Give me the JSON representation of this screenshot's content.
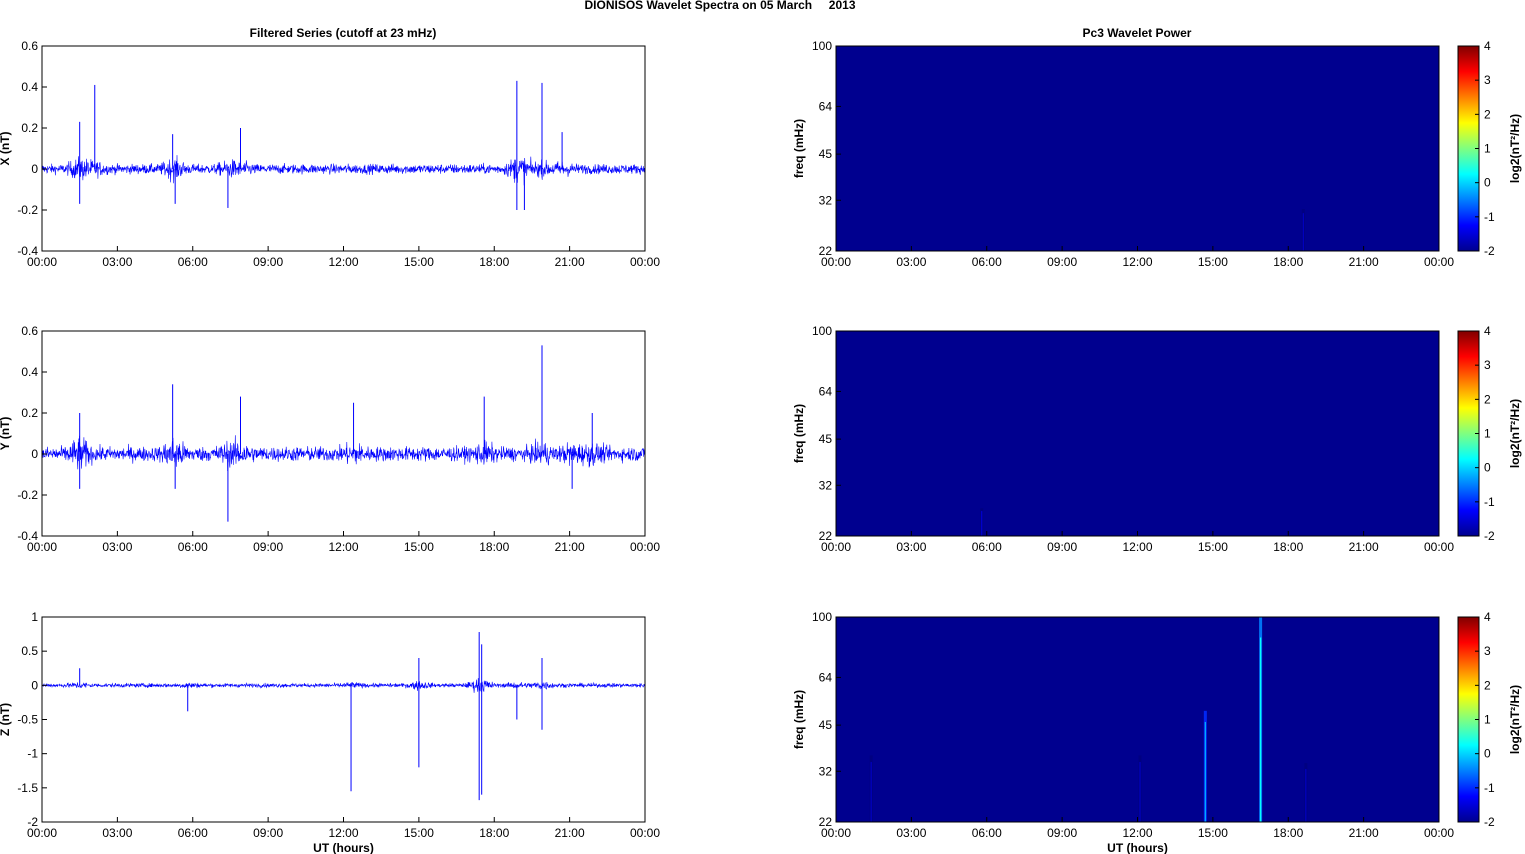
{
  "figure": {
    "title": "DIONISOS Wavelet Spectra on 05 March     2013",
    "left_title": "Filtered Series (cutoff at 23 mHz)",
    "right_title": "Pc3 Wavelet Power"
  },
  "colors": {
    "trace": "#0000ff",
    "axes": "#000000",
    "background": "#00008f"
  },
  "chart_data": [
    {
      "type": "line",
      "panel": "X",
      "title": "Filtered Series (cutoff at 23 mHz)",
      "xlabel": "",
      "ylabel": "X (nT)",
      "x_ticks": [
        "00:00",
        "03:00",
        "06:00",
        "09:00",
        "12:00",
        "15:00",
        "18:00",
        "21:00",
        "00:00"
      ],
      "xlim_hours": [
        0,
        24
      ],
      "ylim": [
        -0.4,
        0.6
      ],
      "y_ticks": [
        "0.6",
        "0.4",
        "0.2",
        "0",
        "-0.2",
        "-0.4"
      ],
      "y_tick_values": [
        0.6,
        0.4,
        0.2,
        0,
        -0.2,
        -0.4
      ],
      "noise_amplitude": 0.04,
      "bursts": [
        {
          "hour": 1.5,
          "y": 0.23
        },
        {
          "hour": 2.1,
          "y": 0.41
        },
        {
          "hour": 5.2,
          "y": 0.17
        },
        {
          "hour": 7.9,
          "y": 0.2
        },
        {
          "hour": 18.9,
          "y": 0.43
        },
        {
          "hour": 19.9,
          "y": 0.42
        },
        {
          "hour": 20.7,
          "y": 0.18
        },
        {
          "hour": 1.5,
          "y": -0.17
        },
        {
          "hour": 7.4,
          "y": -0.19
        },
        {
          "hour": 18.9,
          "y": -0.2
        },
        {
          "hour": 19.2,
          "y": -0.2
        },
        {
          "hour": 5.3,
          "y": -0.17
        }
      ]
    },
    {
      "type": "line",
      "panel": "Y",
      "xlabel": "",
      "ylabel": "Y (nT)",
      "x_ticks": [
        "00:00",
        "03:00",
        "06:00",
        "09:00",
        "12:00",
        "15:00",
        "18:00",
        "21:00",
        "00:00"
      ],
      "xlim_hours": [
        0,
        24
      ],
      "ylim": [
        -0.4,
        0.6
      ],
      "y_ticks": [
        "0.6",
        "0.4",
        "0.2",
        "0",
        "-0.2",
        "-0.4"
      ],
      "y_tick_values": [
        0.6,
        0.4,
        0.2,
        0,
        -0.2,
        -0.4
      ],
      "noise_amplitude": 0.06,
      "bursts": [
        {
          "hour": 5.2,
          "y": 0.34
        },
        {
          "hour": 7.9,
          "y": 0.28
        },
        {
          "hour": 19.9,
          "y": 0.53
        },
        {
          "hour": 17.6,
          "y": 0.28
        },
        {
          "hour": 12.4,
          "y": 0.25
        },
        {
          "hour": 1.5,
          "y": 0.2
        },
        {
          "hour": 21.9,
          "y": 0.2
        },
        {
          "hour": 7.4,
          "y": -0.33
        },
        {
          "hour": 5.3,
          "y": -0.17
        },
        {
          "hour": 1.5,
          "y": -0.17
        },
        {
          "hour": 21.1,
          "y": -0.17
        }
      ]
    },
    {
      "type": "line",
      "panel": "Z",
      "xlabel": "UT (hours)",
      "ylabel": "Z (nT)",
      "x_ticks": [
        "00:00",
        "03:00",
        "06:00",
        "09:00",
        "12:00",
        "15:00",
        "18:00",
        "21:00",
        "00:00"
      ],
      "xlim_hours": [
        0,
        24
      ],
      "ylim": [
        -2,
        1
      ],
      "y_ticks": [
        "1",
        "0.5",
        "0",
        "-0.5",
        "-1",
        "-1.5",
        "-2"
      ],
      "y_tick_values": [
        1,
        0.5,
        0,
        -0.5,
        -1,
        -1.5,
        -2
      ],
      "noise_amplitude": 0.05,
      "bursts": [
        {
          "hour": 17.4,
          "y": 0.78
        },
        {
          "hour": 17.5,
          "y": 0.6
        },
        {
          "hour": 15.0,
          "y": 0.4
        },
        {
          "hour": 19.9,
          "y": 0.4
        },
        {
          "hour": 1.5,
          "y": 0.25
        },
        {
          "hour": 12.3,
          "y": -1.55
        },
        {
          "hour": 15.0,
          "y": -1.2
        },
        {
          "hour": 17.4,
          "y": -1.68
        },
        {
          "hour": 17.5,
          "y": -1.6
        },
        {
          "hour": 18.9,
          "y": -0.5
        },
        {
          "hour": 19.9,
          "y": -0.65
        },
        {
          "hour": 5.8,
          "y": -0.38
        }
      ]
    },
    {
      "type": "heatmap",
      "panel": "X",
      "title": "Pc3 Wavelet Power",
      "xlabel": "",
      "ylabel": "freq (mHz)",
      "x_ticks": [
        "00:00",
        "03:00",
        "06:00",
        "09:00",
        "12:00",
        "15:00",
        "18:00",
        "21:00",
        "00:00"
      ],
      "y_ticks": [
        "100",
        "64",
        "45",
        "32",
        "22"
      ],
      "y_tick_values": [
        100,
        64,
        45,
        32,
        22
      ],
      "freq_scale": "log",
      "ylim": [
        22,
        100
      ],
      "colorbar_label": "log2(nT²/Hz)",
      "colorbar_ticks": [
        "4",
        "3",
        "2",
        "1",
        "0",
        "-1",
        "-2"
      ],
      "clim": [
        -2,
        4
      ],
      "features": [
        {
          "hour": 18.6,
          "freq_top": 30,
          "level": -1.6
        }
      ]
    },
    {
      "type": "heatmap",
      "panel": "Y",
      "xlabel": "",
      "ylabel": "freq (mHz)",
      "x_ticks": [
        "00:00",
        "03:00",
        "06:00",
        "09:00",
        "12:00",
        "15:00",
        "18:00",
        "21:00",
        "00:00"
      ],
      "y_ticks": [
        "100",
        "64",
        "45",
        "32",
        "22"
      ],
      "y_tick_values": [
        100,
        64,
        45,
        32,
        22
      ],
      "freq_scale": "log",
      "ylim": [
        22,
        100
      ],
      "colorbar_label": "log2(nT²/Hz)",
      "colorbar_ticks": [
        "4",
        "3",
        "2",
        "1",
        "0",
        "-1",
        "-2"
      ],
      "clim": [
        -2,
        4
      ],
      "features": [
        {
          "hour": 5.8,
          "freq_top": 27,
          "level": -1.5
        }
      ]
    },
    {
      "type": "heatmap",
      "panel": "Z",
      "xlabel": "UT (hours)",
      "ylabel": "freq (mHz)",
      "x_ticks": [
        "00:00",
        "03:00",
        "06:00",
        "09:00",
        "12:00",
        "15:00",
        "18:00",
        "21:00",
        "00:00"
      ],
      "y_ticks": [
        "100",
        "64",
        "45",
        "32",
        "22"
      ],
      "y_tick_values": [
        100,
        64,
        45,
        32,
        22
      ],
      "freq_scale": "log",
      "ylim": [
        22,
        100
      ],
      "colorbar_label": "log2(nT²/Hz)",
      "colorbar_ticks": [
        "4",
        "3",
        "2",
        "1",
        "0",
        "-1",
        "-2"
      ],
      "clim": [
        -2,
        4
      ],
      "features": [
        {
          "hour": 1.4,
          "freq_top": 36,
          "level": -1.6
        },
        {
          "hour": 12.1,
          "freq_top": 36,
          "level": -1.6
        },
        {
          "hour": 14.7,
          "freq_top": 50,
          "level": -0.2
        },
        {
          "hour": 16.9,
          "freq_top": 100,
          "level": 0.3
        },
        {
          "hour": 18.7,
          "freq_top": 34,
          "level": -1.6
        }
      ]
    }
  ]
}
